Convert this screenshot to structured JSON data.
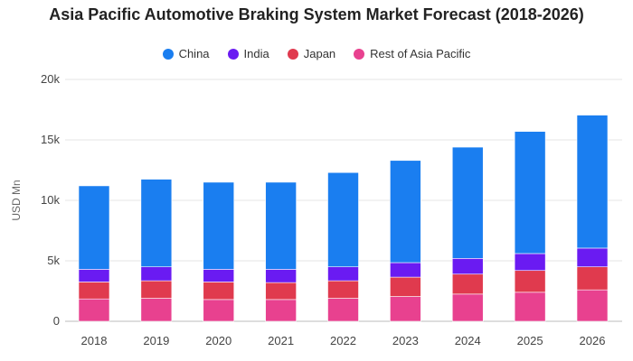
{
  "chart_data": {
    "type": "bar",
    "stacked": true,
    "title": "Asia Pacific Automotive Braking System Market Forecast (2018-2026)",
    "ylabel": "USD Mn",
    "xlabel": "",
    "ylim": [
      0,
      20000
    ],
    "y_ticks": [
      {
        "value": 0,
        "label": "0"
      },
      {
        "value": 5000,
        "label": "5k"
      },
      {
        "value": 10000,
        "label": "10k"
      },
      {
        "value": 15000,
        "label": "15k"
      },
      {
        "value": 20000,
        "label": "20k"
      }
    ],
    "grid": true,
    "legend_position": "top",
    "categories": [
      "2018",
      "2019",
      "2020",
      "2021",
      "2022",
      "2023",
      "2024",
      "2025",
      "2026"
    ],
    "series": [
      {
        "name": "Rest of Asia Pacific",
        "color": "#E8418F",
        "values": [
          1850,
          1900,
          1800,
          1800,
          1900,
          2050,
          2250,
          2400,
          2600
        ]
      },
      {
        "name": "Japan",
        "color": "#E03A4E",
        "values": [
          1400,
          1450,
          1450,
          1400,
          1450,
          1600,
          1650,
          1800,
          1900
        ]
      },
      {
        "name": "India",
        "color": "#6A1BF2",
        "values": [
          1050,
          1150,
          1050,
          1100,
          1150,
          1200,
          1300,
          1400,
          1550
        ]
      },
      {
        "name": "China",
        "color": "#1A7EF0",
        "values": [
          6900,
          7250,
          7200,
          7200,
          7800,
          8450,
          9200,
          10100,
          11000
        ]
      }
    ],
    "legend_order": [
      "China",
      "India",
      "Japan",
      "Rest of Asia Pacific"
    ]
  }
}
